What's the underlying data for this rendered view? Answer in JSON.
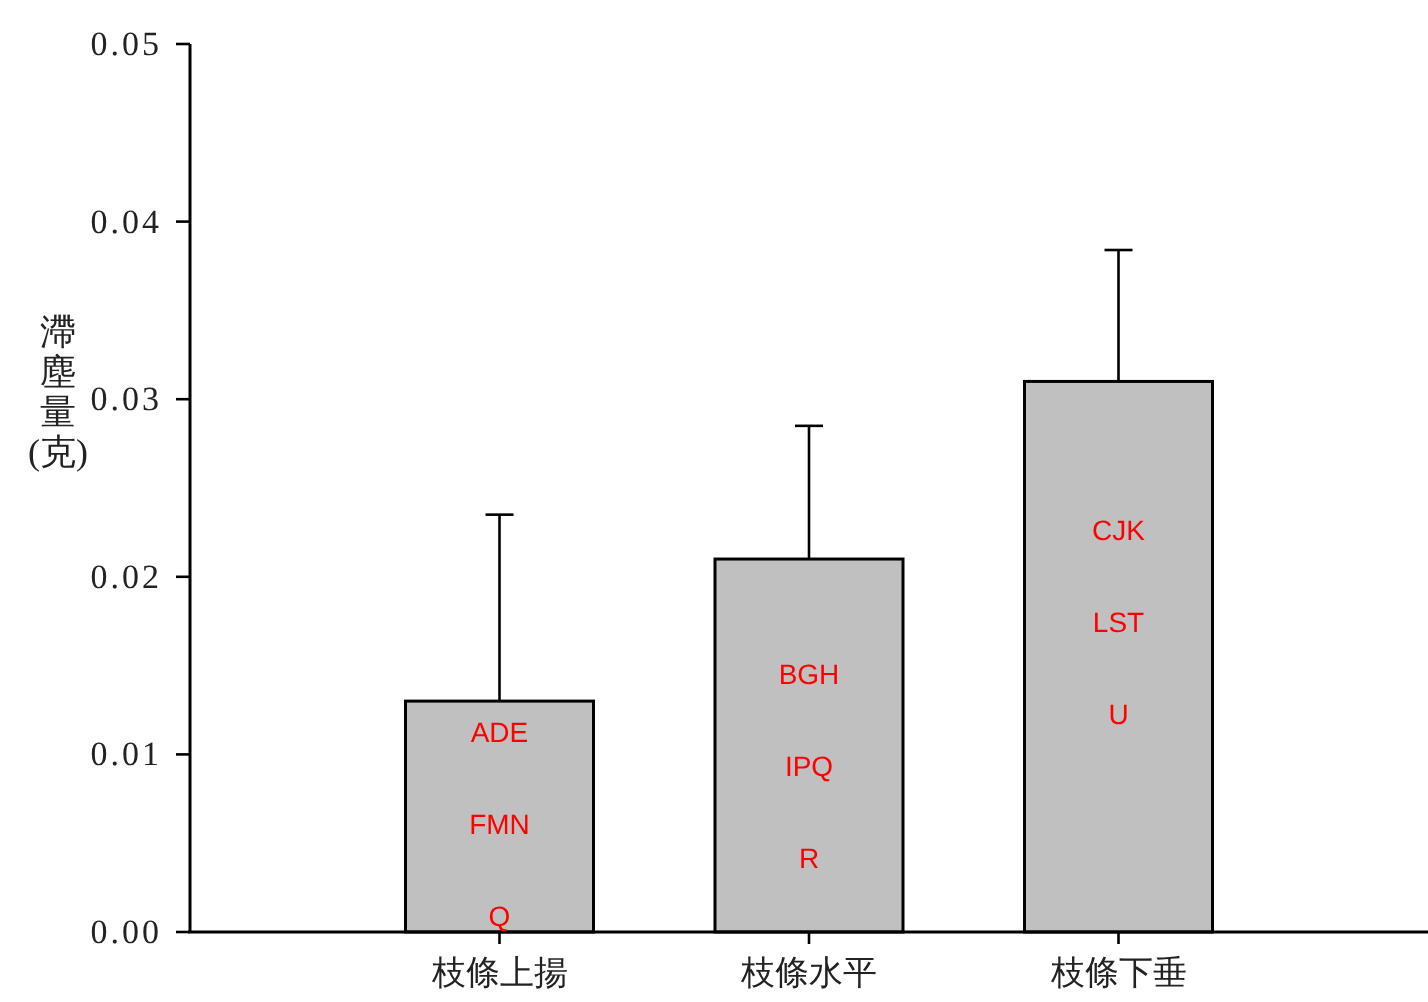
{
  "chart_data": {
    "type": "bar",
    "ylabel": "滯塵量(克)",
    "categories": [
      "枝條上揚",
      "枝條水平",
      "枝條下垂"
    ],
    "values": [
      0.013,
      0.021,
      0.031
    ],
    "color": "#c0c0c0",
    "errors": [
      [
        0.013,
        0.0235
      ],
      [
        0.021,
        0.0285
      ],
      [
        0.031,
        0.0384
      ]
    ],
    "ylim": [
      0,
      0.05
    ],
    "yticks": [
      {
        "value": 0,
        "label": "0.00"
      },
      {
        "value": 0.01,
        "label": "0.01"
      },
      {
        "value": 0.02,
        "label": "0.02"
      },
      {
        "value": 0.03,
        "label": "0.03"
      },
      {
        "value": 0.04,
        "label": "0.04"
      },
      {
        "value": 0.05,
        "label": "0.05"
      }
    ],
    "annotations": [
      "ADE",
      "FMN",
      "Q",
      "BGH",
      "IPQ",
      "R",
      "CJK",
      "LST",
      "U"
    ],
    "grid": false
  }
}
